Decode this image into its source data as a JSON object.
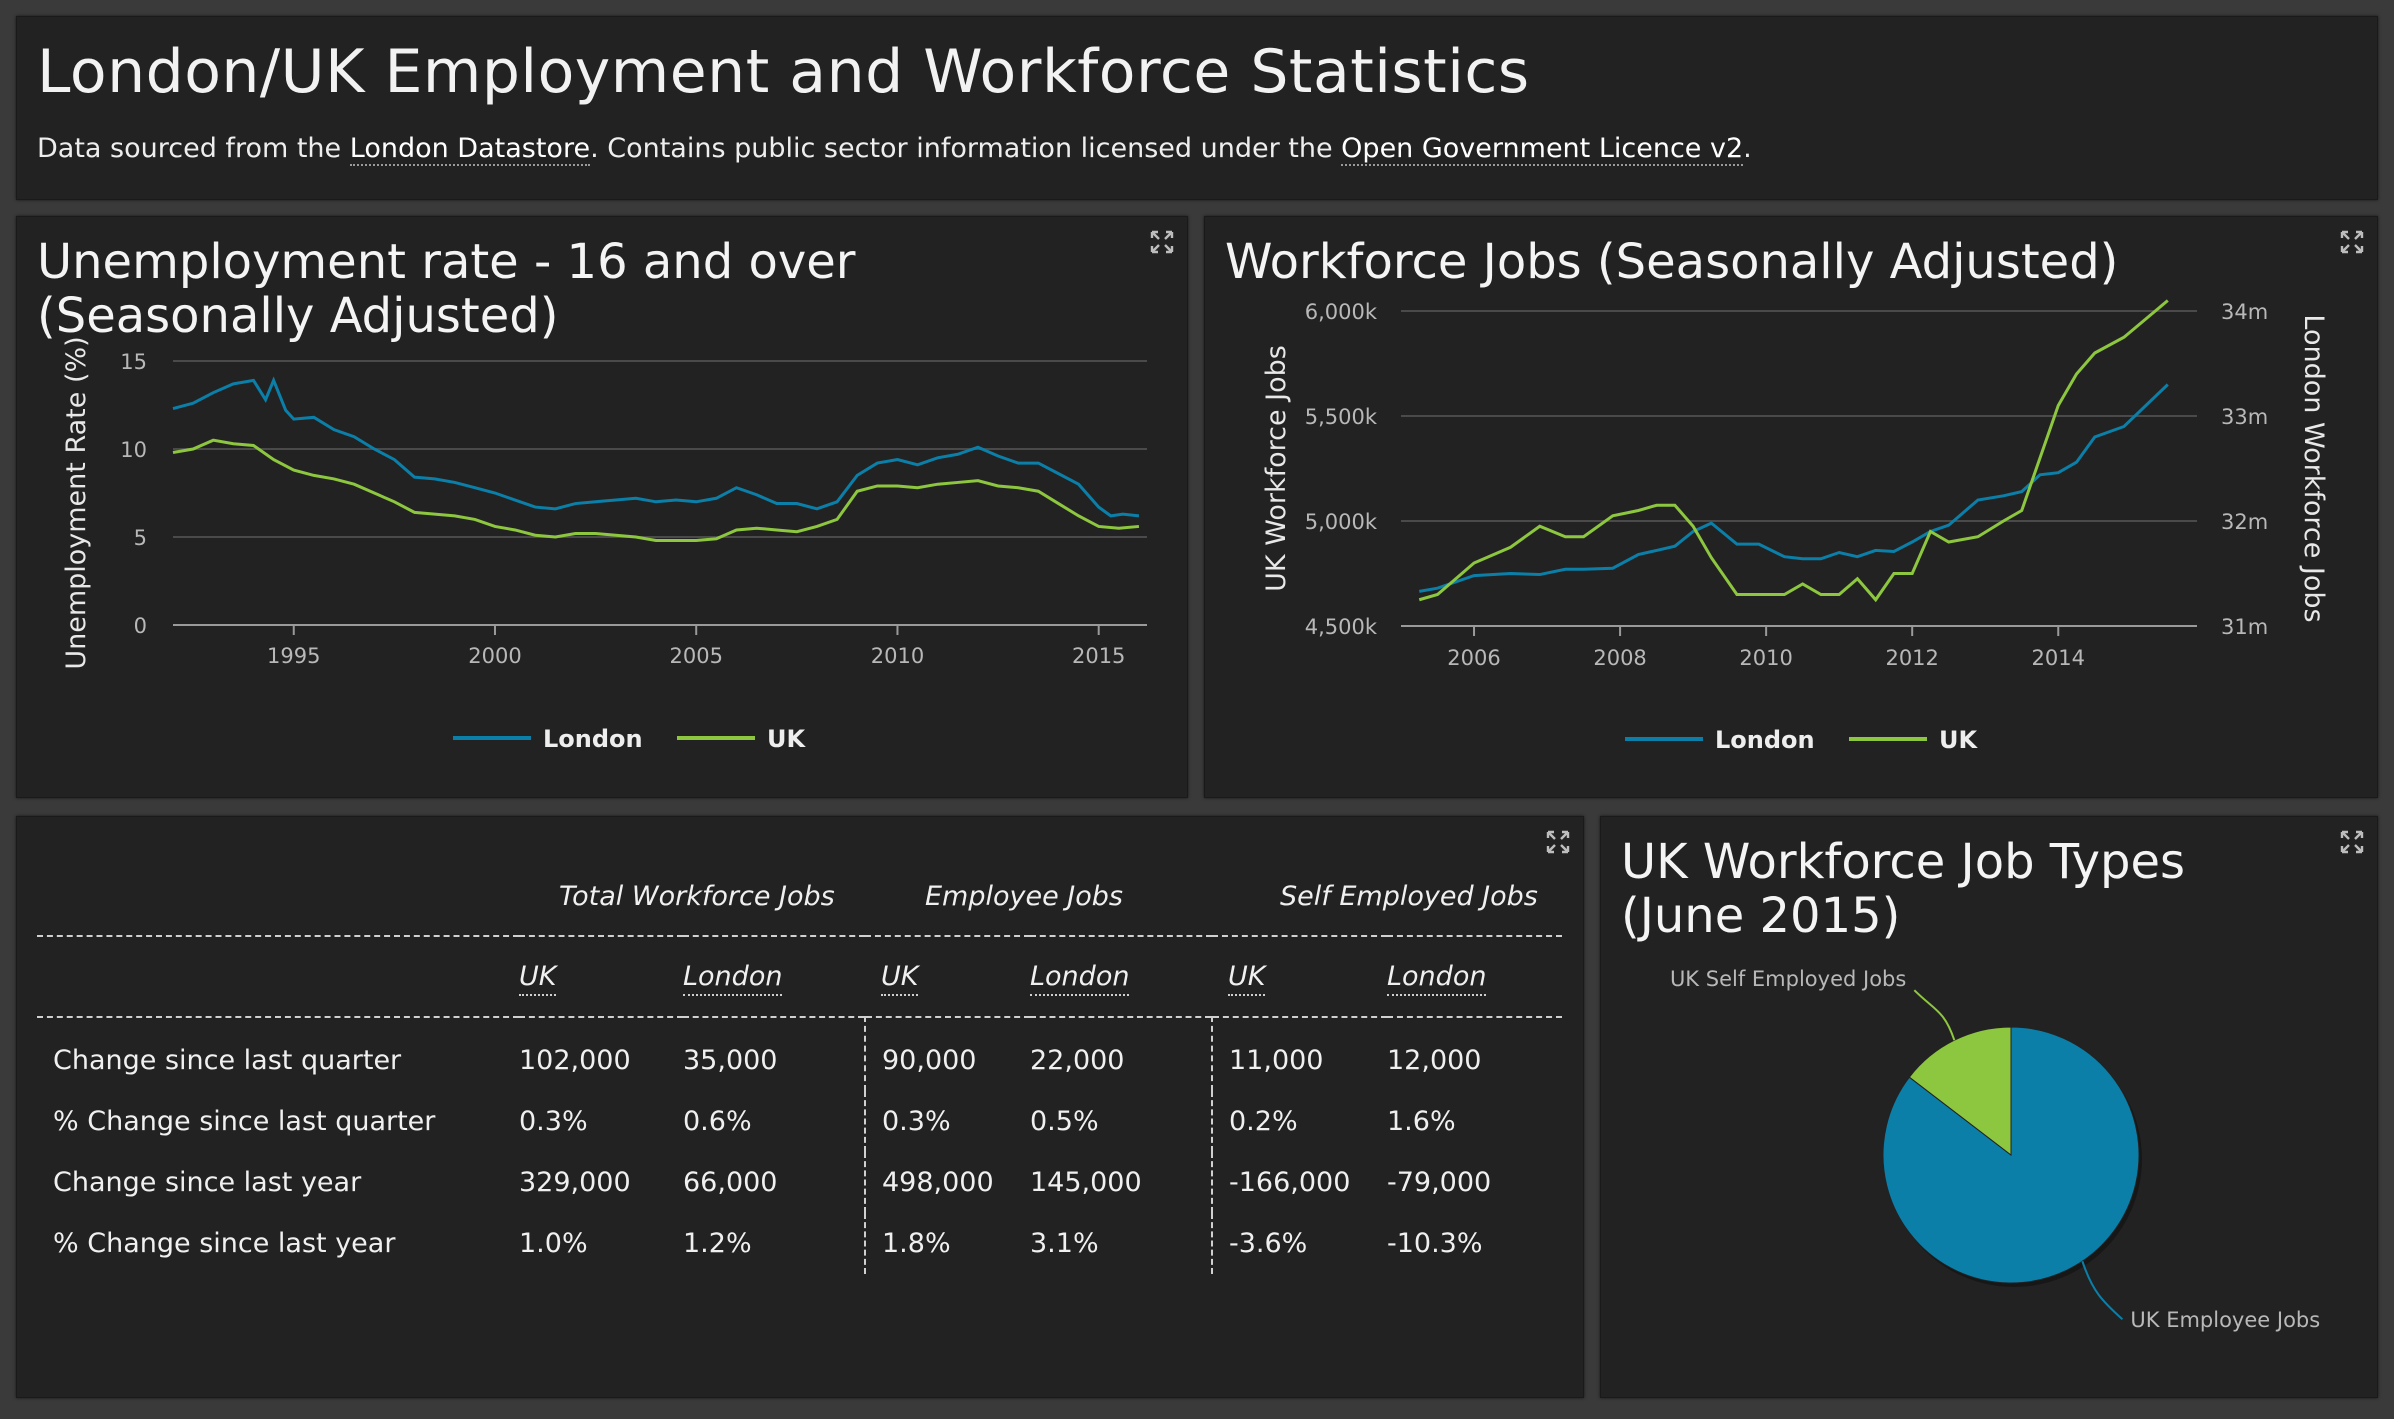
{
  "header": {
    "title": "London/UK Employment and Workforce Statistics",
    "subtitle_pre": "Data sourced from the ",
    "datastore_link": "London Datastore",
    "subtitle_mid": ". Contains public sector information licensed under the ",
    "licence_link": "Open Government Licence v2",
    "subtitle_end": "."
  },
  "colors": {
    "london": "#0b7fa8",
    "uk": "#8dc63f",
    "pie_employee": "#0b7fa8",
    "pie_self": "#8dc63f"
  },
  "unemployment": {
    "title": "Unemployment rate - 16 and over (Seasonally Adjusted)",
    "legend": [
      "London",
      "UK"
    ]
  },
  "workforce": {
    "title": "Workforce Jobs (Seasonally Adjusted)",
    "legend": [
      "London",
      "UK"
    ]
  },
  "table": {
    "groups": [
      "Total Workforce Jobs",
      "Employee Jobs",
      "Self Employed Jobs"
    ],
    "subheaders": [
      "UK",
      "London",
      "UK",
      "London",
      "UK",
      "London"
    ],
    "rows": [
      {
        "label": "Change since last quarter",
        "values": [
          "102,000",
          "35,000",
          "90,000",
          "22,000",
          "11,000",
          "12,000"
        ]
      },
      {
        "label": "% Change since last quarter",
        "values": [
          "0.3%",
          "0.6%",
          "0.3%",
          "0.5%",
          "0.2%",
          "1.6%"
        ]
      },
      {
        "label": "Change since last year",
        "values": [
          "329,000",
          "66,000",
          "498,000",
          "145,000",
          "-166,000",
          "-79,000"
        ]
      },
      {
        "label": "% Change since last year",
        "values": [
          "1.0%",
          "1.2%",
          "1.8%",
          "3.1%",
          "-3.6%",
          "-10.3%"
        ]
      }
    ]
  },
  "job_types": {
    "title": "UK Workforce Job Types (June 2015)"
  },
  "chart_data": [
    {
      "type": "line",
      "title": "Unemployment rate - 16 and over (Seasonally Adjusted)",
      "xlabel": "",
      "ylabel": "Unemployment Rate (%)",
      "xlim": [
        1992,
        2016.2
      ],
      "ylim": [
        0,
        15
      ],
      "xticks": [
        1995,
        2000,
        2005,
        2010,
        2015
      ],
      "yticks": [
        0,
        5,
        10,
        15
      ],
      "series": [
        {
          "name": "London",
          "color": "#0b7fa8",
          "x": [
            1992,
            1992.5,
            1993,
            1993.5,
            1994,
            1994.3,
            1994.5,
            1994.8,
            1995,
            1995.5,
            1996,
            1996.5,
            1997,
            1997.5,
            1998,
            1998.5,
            1999,
            1999.5,
            2000,
            2000.5,
            2001,
            2001.5,
            2002,
            2002.5,
            2003,
            2003.5,
            2004,
            2004.5,
            2005,
            2005.5,
            2006,
            2006.5,
            2007,
            2007.5,
            2008,
            2008.5,
            2009,
            2009.5,
            2010,
            2010.5,
            2011,
            2011.5,
            2012,
            2012.5,
            2013,
            2013.5,
            2014,
            2014.5,
            2015,
            2015.3,
            2015.6,
            2016
          ],
          "y": [
            12.3,
            12.6,
            13.2,
            13.7,
            13.9,
            12.8,
            13.9,
            12.2,
            11.7,
            11.8,
            11.1,
            10.7,
            10.0,
            9.4,
            8.4,
            8.3,
            8.1,
            7.8,
            7.5,
            7.1,
            6.7,
            6.6,
            6.9,
            7.0,
            7.1,
            7.2,
            7.0,
            7.1,
            7.0,
            7.2,
            7.8,
            7.4,
            6.9,
            6.9,
            6.6,
            7.0,
            8.5,
            9.2,
            9.4,
            9.1,
            9.5,
            9.7,
            10.1,
            9.6,
            9.2,
            9.2,
            8.6,
            8.0,
            6.7,
            6.2,
            6.3,
            6.2
          ]
        },
        {
          "name": "UK",
          "color": "#8dc63f",
          "x": [
            1992,
            1992.5,
            1993,
            1993.5,
            1994,
            1994.5,
            1995,
            1995.5,
            1996,
            1996.5,
            1997,
            1997.5,
            1998,
            1998.5,
            1999,
            1999.5,
            2000,
            2000.5,
            2001,
            2001.5,
            2002,
            2002.5,
            2003,
            2003.5,
            2004,
            2004.5,
            2005,
            2005.5,
            2006,
            2006.5,
            2007,
            2007.5,
            2008,
            2008.5,
            2009,
            2009.5,
            2010,
            2010.5,
            2011,
            2011.5,
            2012,
            2012.5,
            2013,
            2013.5,
            2014,
            2014.5,
            2015,
            2015.5,
            2016
          ],
          "y": [
            9.8,
            10.0,
            10.5,
            10.3,
            10.2,
            9.4,
            8.8,
            8.5,
            8.3,
            8.0,
            7.5,
            7.0,
            6.4,
            6.3,
            6.2,
            6.0,
            5.6,
            5.4,
            5.1,
            5.0,
            5.2,
            5.2,
            5.1,
            5.0,
            4.8,
            4.8,
            4.8,
            4.9,
            5.4,
            5.5,
            5.4,
            5.3,
            5.6,
            6.0,
            7.6,
            7.9,
            7.9,
            7.8,
            8.0,
            8.1,
            8.2,
            7.9,
            7.8,
            7.6,
            6.9,
            6.2,
            5.6,
            5.5,
            5.6
          ]
        }
      ]
    },
    {
      "type": "line",
      "title": "Workforce Jobs (Seasonally Adjusted)",
      "ylabel": "UK Workforce Jobs",
      "y2label": "London Workforce Jobs",
      "xlim": [
        2005.0,
        2015.9
      ],
      "ylim": [
        4500,
        6000
      ],
      "y2lim": [
        31,
        34
      ],
      "xticks": [
        2006,
        2008,
        2010,
        2012,
        2014
      ],
      "yticks": [
        "4,500k",
        "5,000k",
        "5,500k",
        "6,000k"
      ],
      "y2ticks": [
        "31m",
        "32m",
        "33m",
        "34m"
      ],
      "series": [
        {
          "name": "London",
          "axis": "left",
          "color": "#0b7fa8",
          "x": [
            2005.25,
            2005.5,
            2006,
            2006.5,
            2006.9,
            2007.25,
            2007.5,
            2007.9,
            2008.25,
            2008.5,
            2008.75,
            2009,
            2009.25,
            2009.6,
            2009.9,
            2010.25,
            2010.5,
            2010.75,
            2011,
            2011.25,
            2011.5,
            2011.75,
            2012,
            2012.25,
            2012.5,
            2012.9,
            2013.25,
            2013.5,
            2013.75,
            2014,
            2014.25,
            2014.5,
            2014.9,
            2015.5
          ],
          "y": [
            4665,
            4680,
            4740,
            4750,
            4745,
            4770,
            4770,
            4775,
            4840,
            4860,
            4880,
            4950,
            4990,
            4890,
            4890,
            4830,
            4820,
            4820,
            4850,
            4830,
            4860,
            4855,
            4900,
            4950,
            4980,
            5100,
            5120,
            5140,
            5220,
            5230,
            5280,
            5400,
            5450,
            5650
          ]
        },
        {
          "name": "UK",
          "axis": "right",
          "color": "#8dc63f",
          "x": [
            2005.25,
            2005.5,
            2006,
            2006.5,
            2006.9,
            2007.25,
            2007.5,
            2007.9,
            2008.25,
            2008.5,
            2008.75,
            2009,
            2009.25,
            2009.6,
            2009.9,
            2010.25,
            2010.5,
            2010.75,
            2011,
            2011.25,
            2011.5,
            2011.75,
            2012,
            2012.25,
            2012.5,
            2012.9,
            2013.25,
            2013.5,
            2013.75,
            2014,
            2014.25,
            2014.5,
            2014.9,
            2015.5
          ],
          "y": [
            31.25,
            31.3,
            31.6,
            31.75,
            31.95,
            31.85,
            31.85,
            32.05,
            32.1,
            32.15,
            32.15,
            31.95,
            31.65,
            31.3,
            31.3,
            31.3,
            31.4,
            31.3,
            31.3,
            31.45,
            31.25,
            31.5,
            31.5,
            31.9,
            31.8,
            31.85,
            32.0,
            32.1,
            32.6,
            33.1,
            33.4,
            33.6,
            33.75,
            34.1
          ]
        }
      ]
    },
    {
      "type": "pie",
      "title": "UK Workforce Job Types (June 2015)",
      "slices": [
        {
          "label": "UK Employee Jobs",
          "value": 85.4,
          "color": "#0b7fa8"
        },
        {
          "label": "UK Self Employed Jobs",
          "value": 14.6,
          "color": "#8dc63f"
        }
      ]
    }
  ]
}
